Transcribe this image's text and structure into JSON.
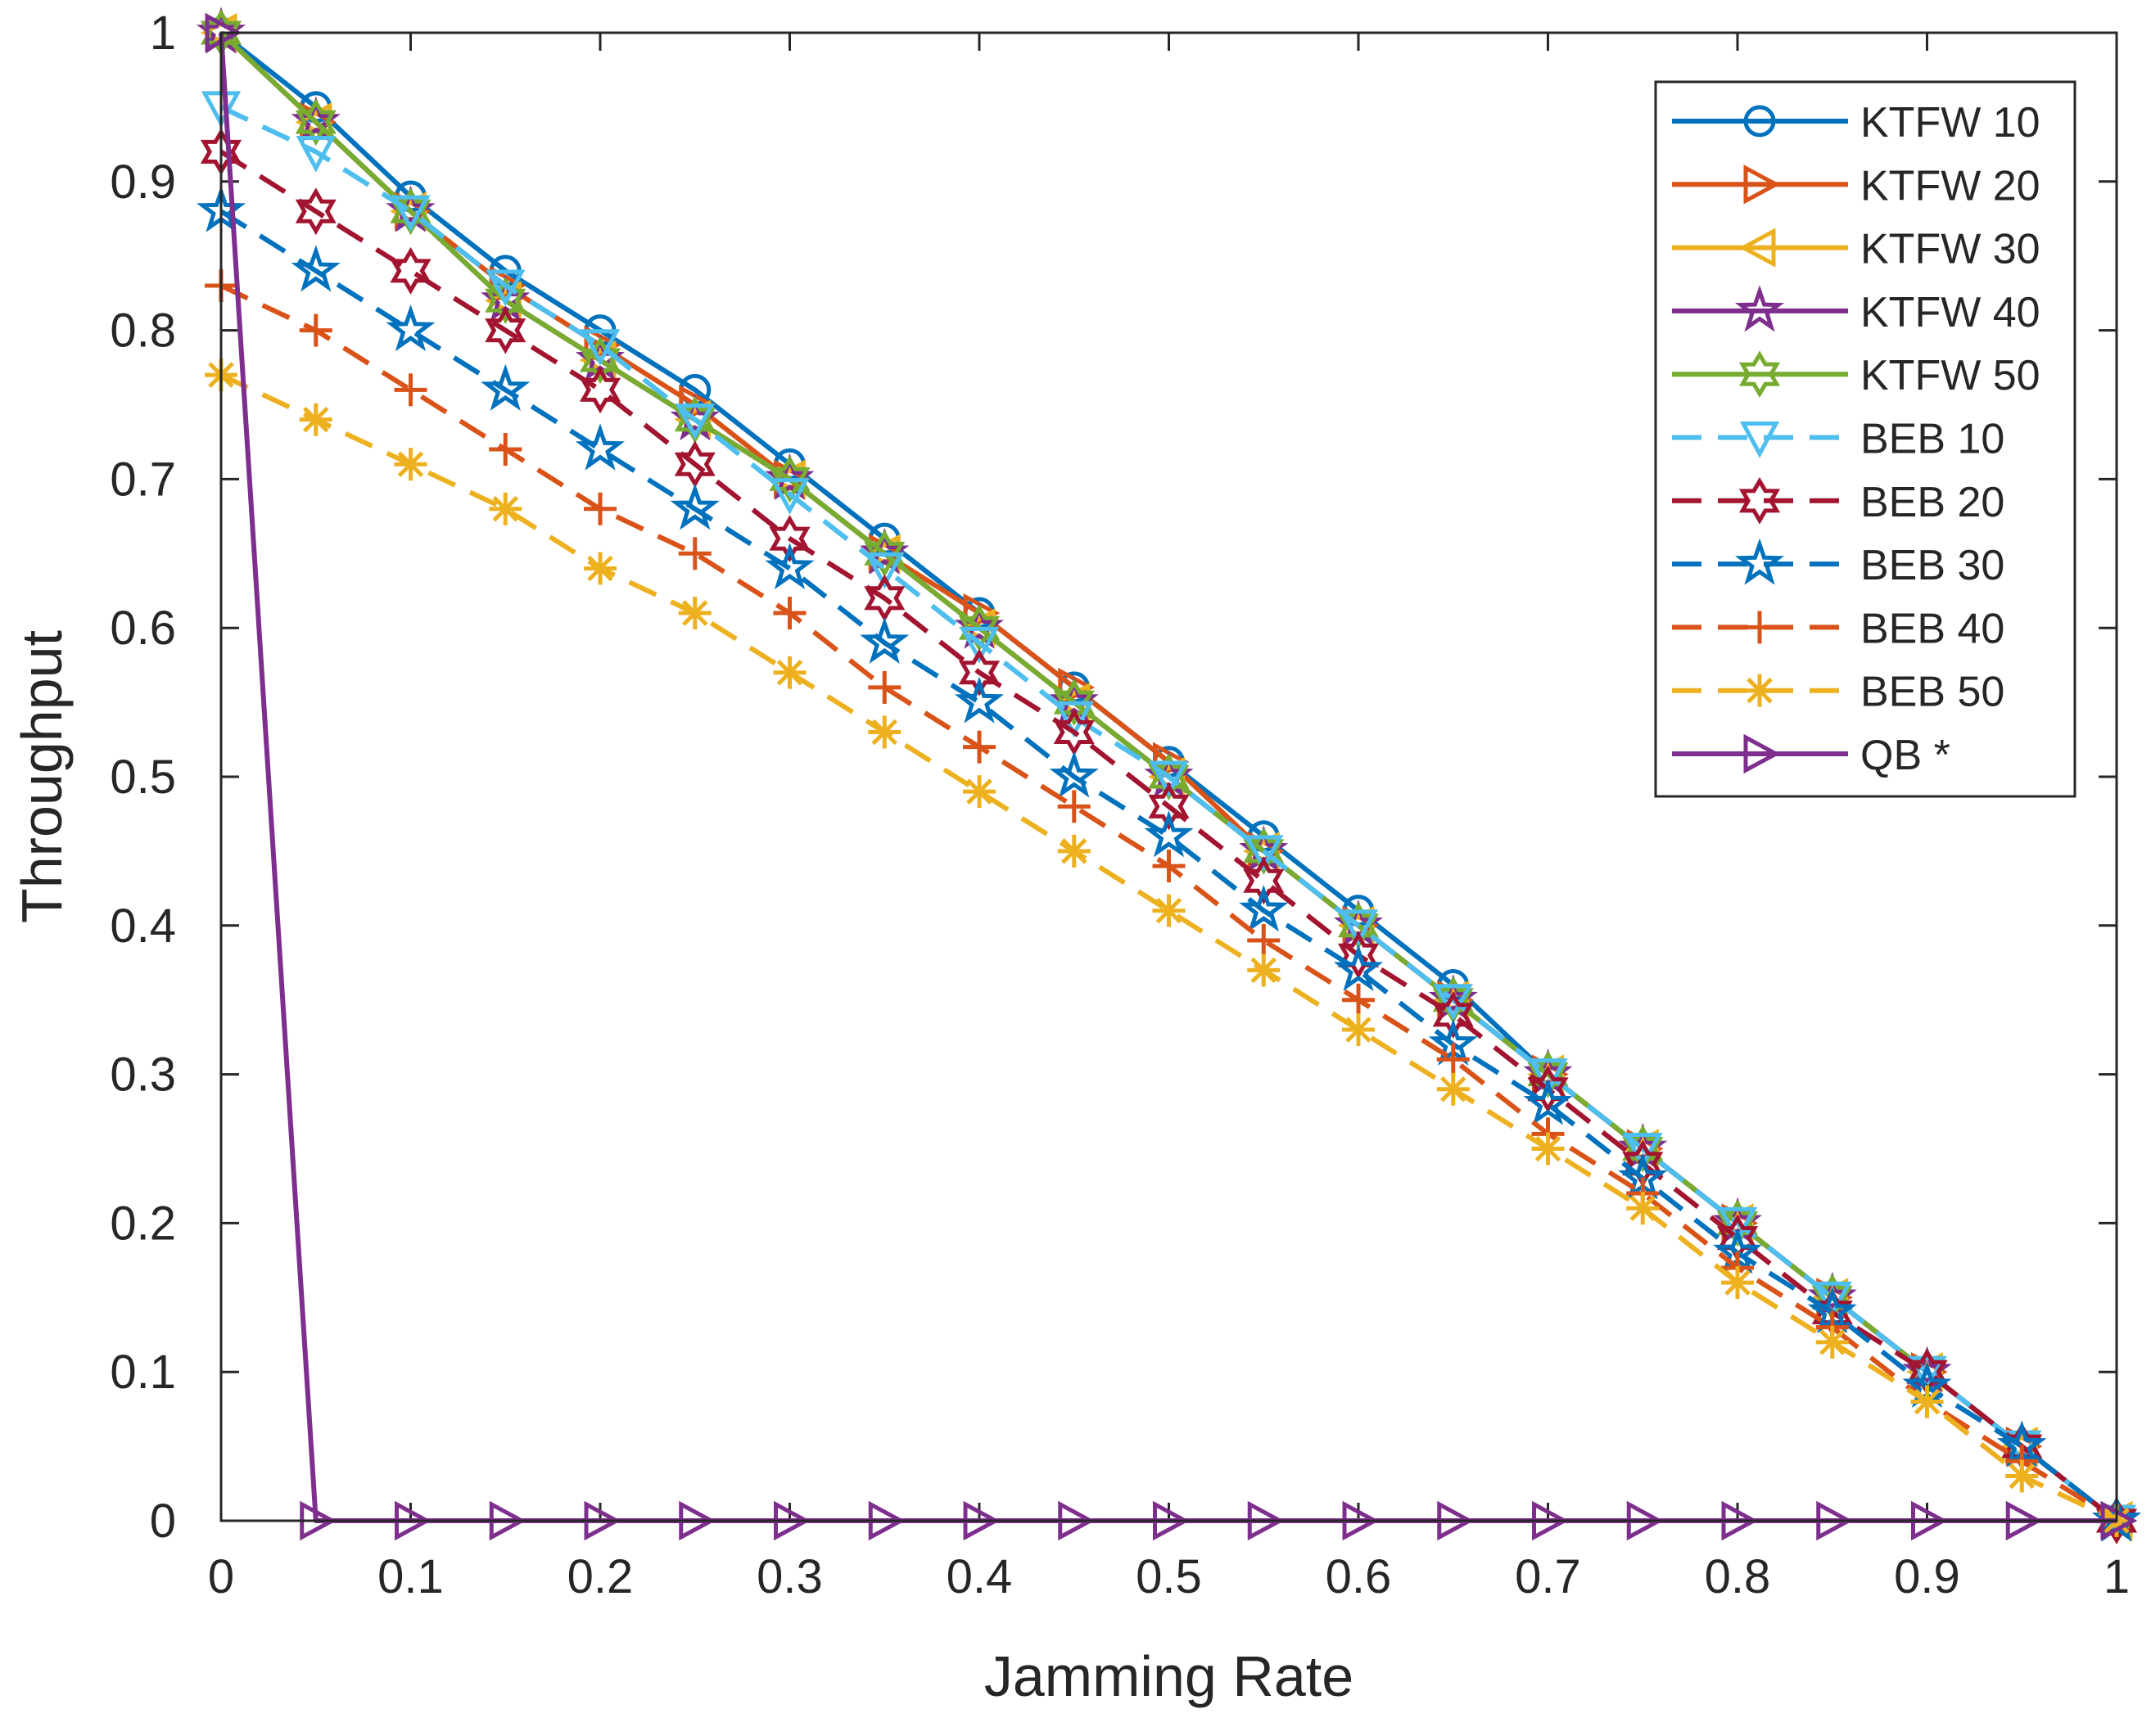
{
  "chart_data": {
    "type": "line",
    "title": "",
    "xlabel": "Jamming Rate",
    "ylabel": "Throughput",
    "xlim": [
      0,
      1
    ],
    "ylim": [
      0,
      1
    ],
    "xticks": [
      0,
      0.1,
      0.2,
      0.3,
      0.4,
      0.5,
      0.6,
      0.7,
      0.8,
      0.9,
      1
    ],
    "xtick_labels": [
      "0",
      "0.1",
      "0.2",
      "0.3",
      "0.4",
      "0.5",
      "0.6",
      "0.7",
      "0.8",
      "0.9",
      "1"
    ],
    "yticks": [
      0,
      0.1,
      0.2,
      0.3,
      0.4,
      0.5,
      0.6,
      0.7,
      0.8,
      0.9,
      1
    ],
    "ytick_labels": [
      "0",
      "0.1",
      "0.2",
      "0.3",
      "0.4",
      "0.5",
      "0.6",
      "0.7",
      "0.8",
      "0.9",
      "1"
    ],
    "grid": false,
    "legend_position": "top-right",
    "x": [
      0,
      0.05,
      0.1,
      0.15,
      0.2,
      0.25,
      0.3,
      0.35,
      0.4,
      0.45,
      0.5,
      0.55,
      0.6,
      0.65,
      0.7,
      0.75,
      0.8,
      0.85,
      0.9,
      0.95,
      1
    ],
    "series": [
      {
        "name": "KTFW 10",
        "color": "#0072BD",
        "dash": "solid",
        "marker": "circle",
        "values": [
          1,
          0.95,
          0.89,
          0.84,
          0.8,
          0.76,
          0.71,
          0.66,
          0.61,
          0.56,
          0.51,
          0.46,
          0.41,
          0.36,
          0.3,
          0.25,
          0.2,
          0.15,
          0.1,
          0.05,
          0
        ]
      },
      {
        "name": "KTFW 20",
        "color": "#D95319",
        "dash": "solid",
        "marker": "triangle-right",
        "values": [
          1,
          0.94,
          0.88,
          0.83,
          0.79,
          0.75,
          0.7,
          0.65,
          0.61,
          0.56,
          0.51,
          0.45,
          0.4,
          0.35,
          0.3,
          0.25,
          0.2,
          0.15,
          0.1,
          0.05,
          0
        ]
      },
      {
        "name": "KTFW 30",
        "color": "#EDB120",
        "dash": "solid",
        "marker": "triangle-left",
        "values": [
          1,
          0.94,
          0.88,
          0.82,
          0.78,
          0.74,
          0.7,
          0.65,
          0.6,
          0.55,
          0.5,
          0.45,
          0.4,
          0.35,
          0.3,
          0.25,
          0.2,
          0.15,
          0.1,
          0.05,
          0
        ]
      },
      {
        "name": "KTFW 40",
        "color": "#7E2F8E",
        "dash": "solid",
        "marker": "star",
        "values": [
          1,
          0.94,
          0.88,
          0.82,
          0.78,
          0.74,
          0.7,
          0.65,
          0.6,
          0.55,
          0.5,
          0.45,
          0.4,
          0.35,
          0.3,
          0.25,
          0.2,
          0.15,
          0.1,
          0.05,
          0
        ]
      },
      {
        "name": "KTFW 50",
        "color": "#77AC30",
        "dash": "solid",
        "marker": "hexagram",
        "values": [
          1,
          0.94,
          0.88,
          0.82,
          0.78,
          0.74,
          0.7,
          0.65,
          0.6,
          0.55,
          0.5,
          0.45,
          0.4,
          0.35,
          0.3,
          0.25,
          0.2,
          0.15,
          0.1,
          0.05,
          0
        ]
      },
      {
        "name": "BEB 10",
        "color": "#4DBEEE",
        "dash": "dashed",
        "marker": "triangle-down",
        "values": [
          0.95,
          0.92,
          0.88,
          0.83,
          0.79,
          0.74,
          0.69,
          0.64,
          0.59,
          0.54,
          0.5,
          0.45,
          0.4,
          0.35,
          0.3,
          0.25,
          0.2,
          0.15,
          0.1,
          0.05,
          0
        ]
      },
      {
        "name": "BEB 20",
        "color": "#A2142F",
        "dash": "dashed",
        "marker": "hexagram",
        "values": [
          0.92,
          0.88,
          0.84,
          0.8,
          0.76,
          0.71,
          0.66,
          0.62,
          0.57,
          0.53,
          0.48,
          0.43,
          0.38,
          0.34,
          0.29,
          0.24,
          0.19,
          0.14,
          0.1,
          0.05,
          0
        ]
      },
      {
        "name": "BEB 30",
        "color": "#0072BD",
        "dash": "dashed",
        "marker": "star",
        "values": [
          0.88,
          0.84,
          0.8,
          0.76,
          0.72,
          0.68,
          0.64,
          0.59,
          0.55,
          0.5,
          0.46,
          0.41,
          0.37,
          0.32,
          0.28,
          0.23,
          0.18,
          0.14,
          0.09,
          0.05,
          0
        ]
      },
      {
        "name": "BEB 40",
        "color": "#D95319",
        "dash": "dashed",
        "marker": "plus",
        "values": [
          0.83,
          0.8,
          0.76,
          0.72,
          0.68,
          0.65,
          0.61,
          0.56,
          0.52,
          0.48,
          0.44,
          0.39,
          0.35,
          0.31,
          0.26,
          0.22,
          0.17,
          0.13,
          0.08,
          0.04,
          0
        ]
      },
      {
        "name": "BEB 50",
        "color": "#EDB120",
        "dash": "dashed",
        "marker": "asterisk",
        "values": [
          0.77,
          0.74,
          0.71,
          0.68,
          0.64,
          0.61,
          0.57,
          0.53,
          0.49,
          0.45,
          0.41,
          0.37,
          0.33,
          0.29,
          0.25,
          0.21,
          0.16,
          0.12,
          0.08,
          0.03,
          0
        ]
      },
      {
        "name": "QB *",
        "color": "#7E2F8E",
        "dash": "solid",
        "marker": "triangle-right",
        "values": [
          1,
          0,
          0,
          0,
          0,
          0,
          0,
          0,
          0,
          0,
          0,
          0,
          0,
          0,
          0,
          0,
          0,
          0,
          0,
          0,
          0
        ]
      }
    ]
  }
}
